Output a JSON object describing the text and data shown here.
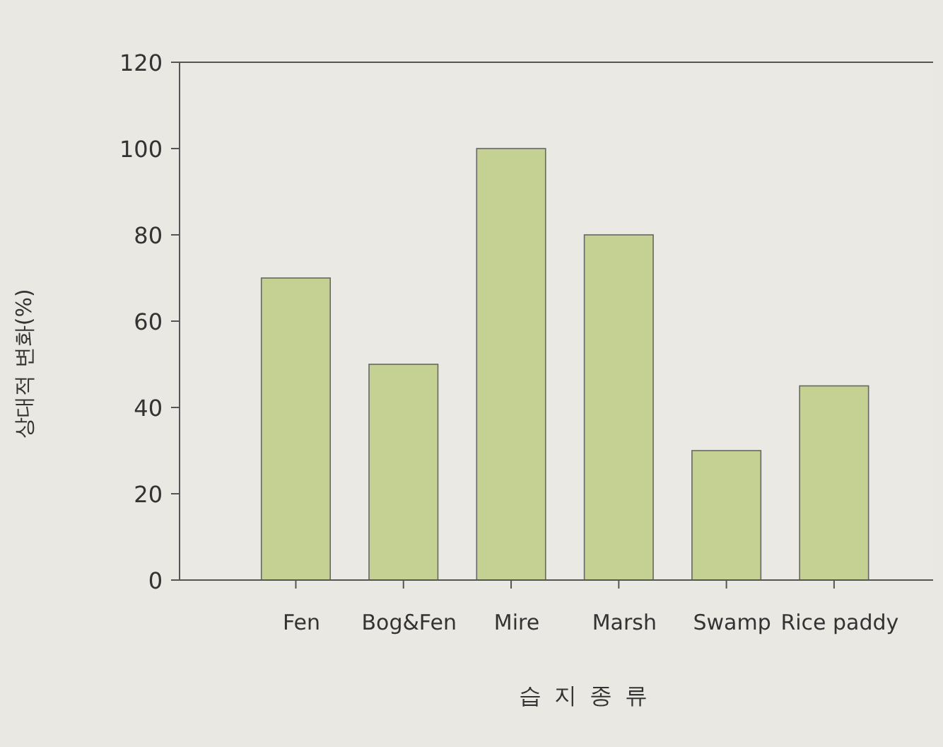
{
  "chart_data": {
    "type": "bar",
    "xlabel": "습 지 종 류",
    "ylabel": "상대적 변화(%)",
    "categories": [
      "Fen",
      "Bog&Fen",
      "Mire",
      "Marsh",
      "Swamp",
      "Rice paddy"
    ],
    "values": [
      70,
      50,
      100,
      80,
      30,
      45
    ],
    "color": "#c5d193",
    "ylim": [
      0,
      120
    ],
    "yticks": [
      0,
      20,
      40,
      60,
      80,
      100,
      120
    ]
  }
}
